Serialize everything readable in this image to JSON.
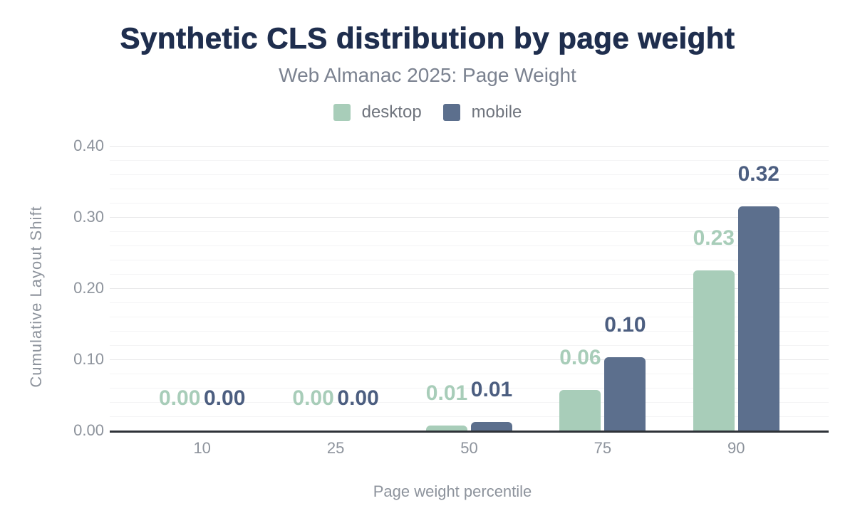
{
  "chart_data": {
    "type": "bar",
    "title": "Synthetic CLS distribution by page weight",
    "subtitle": "Web Almanac 2025: Page Weight",
    "categories": [
      "10",
      "25",
      "50",
      "75",
      "90"
    ],
    "series": [
      {
        "name": "desktop",
        "color": "#a8cdb9",
        "label_color": "#a8cdb9",
        "values": [
          0,
          0,
          0.007,
          0.057,
          0.225
        ],
        "labels": [
          "0.00",
          "0.00",
          "0.01",
          "0.06",
          "0.23"
        ]
      },
      {
        "name": "mobile",
        "color": "#5c6f8d",
        "label_color": "#4c5e80",
        "values": [
          0,
          0,
          0.012,
          0.103,
          0.315
        ],
        "labels": [
          "0.00",
          "0.00",
          "0.01",
          "0.10",
          "0.32"
        ]
      }
    ],
    "xlabel": "Page weight percentile",
    "ylabel": "Cumulative Layout Shift",
    "ylim": [
      0,
      0.4
    ],
    "yticks": [
      {
        "value": 0,
        "label": "0.00"
      },
      {
        "value": 0.1,
        "label": "0.10"
      },
      {
        "value": 0.2,
        "label": "0.20"
      },
      {
        "value": 0.3,
        "label": "0.30"
      },
      {
        "value": 0.4,
        "label": "0.40"
      }
    ],
    "grid": {
      "on": true,
      "minor_step": 0.02,
      "major_step": 0.1
    },
    "legend_position": "top"
  },
  "theme": {
    "background": "#ffffff",
    "title_color": "#1f2e4e",
    "subtitle_color": "#7b8290",
    "tick_color": "#8d939c",
    "axis_title_color": "#8d939c",
    "legend_text_color": "#6f747d",
    "axis_line_color": "#2e3238",
    "gridline_minor_color": "#f4f4f5",
    "gridline_major_color": "#e8e8ea"
  }
}
